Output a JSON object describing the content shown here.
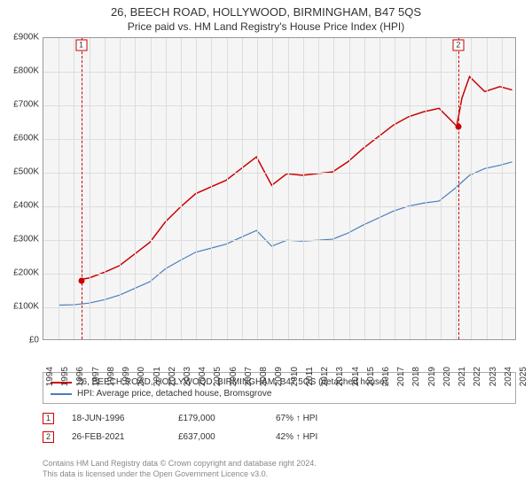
{
  "title": "26, BEECH ROAD, HOLLYWOOD, BIRMINGHAM, B47 5QS",
  "subtitle": "Price paid vs. HM Land Registry's House Price Index (HPI)",
  "chart": {
    "type": "line",
    "background_color": "#f5f5f5",
    "grid_color": "#dddddd",
    "border_color": "#999999",
    "title_fontsize": 13,
    "label_fontsize": 10,
    "x": {
      "min": 1994,
      "max": 2025,
      "tick_step": 1,
      "labels": [
        "1994",
        "1995",
        "1996",
        "1997",
        "1998",
        "1999",
        "2000",
        "2001",
        "2002",
        "2003",
        "2004",
        "2005",
        "2006",
        "2007",
        "2008",
        "2009",
        "2010",
        "2011",
        "2012",
        "2013",
        "2014",
        "2015",
        "2016",
        "2017",
        "2018",
        "2019",
        "2020",
        "2021",
        "2022",
        "2023",
        "2024",
        "2025"
      ]
    },
    "y": {
      "min": 0,
      "max": 900000,
      "tick_step": 100000,
      "labels": [
        "£0",
        "£100K",
        "£200K",
        "£300K",
        "£400K",
        "£500K",
        "£600K",
        "£700K",
        "£800K",
        "£900K"
      ]
    },
    "series": [
      {
        "name": "26, BEECH ROAD, HOLLYWOOD, BIRMINGHAM, B47 5QS (detached house)",
        "color": "#cc0000",
        "line_width": 1.5,
        "points": [
          [
            1996.47,
            179000
          ],
          [
            1997,
            183000
          ],
          [
            1998,
            200000
          ],
          [
            1999,
            220000
          ],
          [
            2000,
            255000
          ],
          [
            2001,
            290000
          ],
          [
            2002,
            350000
          ],
          [
            2003,
            395000
          ],
          [
            2004,
            435000
          ],
          [
            2005,
            455000
          ],
          [
            2006,
            475000
          ],
          [
            2007,
            510000
          ],
          [
            2008,
            545000
          ],
          [
            2009,
            460000
          ],
          [
            2010,
            495000
          ],
          [
            2011,
            490000
          ],
          [
            2012,
            495000
          ],
          [
            2013,
            500000
          ],
          [
            2014,
            530000
          ],
          [
            2015,
            570000
          ],
          [
            2016,
            605000
          ],
          [
            2017,
            640000
          ],
          [
            2018,
            665000
          ],
          [
            2019,
            680000
          ],
          [
            2020,
            690000
          ],
          [
            2021.16,
            637000
          ],
          [
            2021.5,
            720000
          ],
          [
            2022,
            785000
          ],
          [
            2023,
            740000
          ],
          [
            2024,
            755000
          ],
          [
            2024.8,
            745000
          ]
        ]
      },
      {
        "name": "HPI: Average price, detached house, Bromsgrove",
        "color": "#4a7ebb",
        "line_width": 1.2,
        "points": [
          [
            1995,
            102000
          ],
          [
            1996,
            103000
          ],
          [
            1997,
            108000
          ],
          [
            1998,
            118000
          ],
          [
            1999,
            132000
          ],
          [
            2000,
            152000
          ],
          [
            2001,
            172000
          ],
          [
            2002,
            210000
          ],
          [
            2003,
            236000
          ],
          [
            2004,
            260000
          ],
          [
            2005,
            272000
          ],
          [
            2006,
            284000
          ],
          [
            2007,
            305000
          ],
          [
            2008,
            325000
          ],
          [
            2009,
            278000
          ],
          [
            2010,
            296000
          ],
          [
            2011,
            293000
          ],
          [
            2012,
            296000
          ],
          [
            2013,
            299000
          ],
          [
            2014,
            317000
          ],
          [
            2015,
            341000
          ],
          [
            2016,
            362000
          ],
          [
            2017,
            383000
          ],
          [
            2018,
            398000
          ],
          [
            2019,
            407000
          ],
          [
            2020,
            413000
          ],
          [
            2021,
            449000
          ],
          [
            2022,
            490000
          ],
          [
            2023,
            510000
          ],
          [
            2024,
            520000
          ],
          [
            2024.8,
            530000
          ]
        ]
      }
    ],
    "sale_markers": [
      {
        "n": "1",
        "x": 1996.47,
        "y": 179000,
        "vline_color": "#cc0000"
      },
      {
        "n": "2",
        "x": 2021.16,
        "y": 637000,
        "vline_color": "#cc0000"
      }
    ],
    "dot_color": "#cc0000",
    "marker_box_border": "#cc0000"
  },
  "legend": {
    "items": [
      {
        "color": "#cc0000",
        "label": "26, BEECH ROAD, HOLLYWOOD, BIRMINGHAM, B47 5QS (detached house)"
      },
      {
        "color": "#4a7ebb",
        "label": "HPI: Average price, detached house, Bromsgrove"
      }
    ]
  },
  "sales": [
    {
      "n": "1",
      "date": "18-JUN-1996",
      "price": "£179,000",
      "pct": "67% ↑ HPI"
    },
    {
      "n": "2",
      "date": "26-FEB-2021",
      "price": "£637,000",
      "pct": "42% ↑ HPI"
    }
  ],
  "footer": {
    "line1": "Contains HM Land Registry data © Crown copyright and database right 2024.",
    "line2": "This data is licensed under the Open Government Licence v3.0."
  }
}
